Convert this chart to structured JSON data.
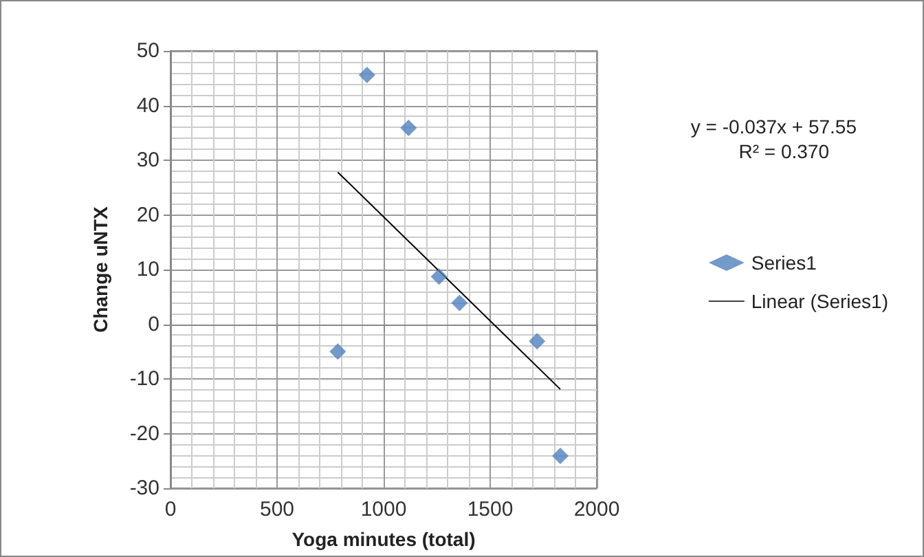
{
  "chart_data": {
    "type": "scatter",
    "xlabel": "Yoga minutes (total)",
    "ylabel": "Change uNTX",
    "annotations": [
      "y = -0.037x + 57.55",
      "R² = 0.370"
    ],
    "xlim": [
      0,
      2000
    ],
    "xticks": [
      0,
      500,
      1000,
      1500,
      2000
    ],
    "ylim": [
      -30,
      50
    ],
    "yticks": [
      -30,
      -20,
      -10,
      0,
      10,
      20,
      30,
      40,
      50
    ],
    "grid": true,
    "legend": "right",
    "marker": "diamond",
    "series": [
      {
        "name": "Series1",
        "color": "#4f81bd",
        "x": [
          785,
          922,
          1117,
          1260,
          1356,
          1720,
          1829
        ],
        "values": [
          -5.0,
          45.6,
          35.9,
          8.7,
          3.9,
          -3.1,
          -24.1
        ]
      },
      {
        "name": "Linear (Series1)",
        "type": "line",
        "color": "#000000",
        "marker": "none",
        "line_style": "solid",
        "x": [
          785,
          1829
        ],
        "values": [
          27.8,
          -11.9
        ]
      }
    ]
  }
}
